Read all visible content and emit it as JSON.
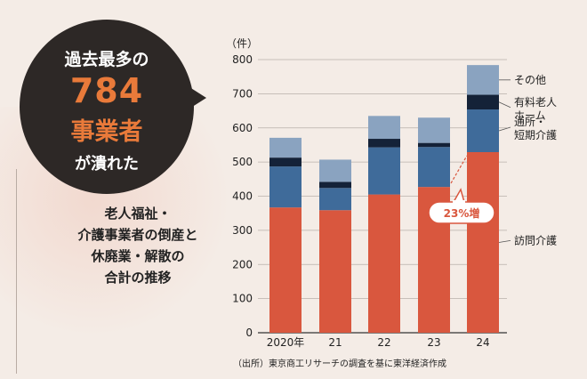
{
  "headline": {
    "line1": "過去最多の",
    "number": "784",
    "line3": "事業者",
    "line4": "が潰れた"
  },
  "description": [
    "老人福祉・",
    "介護事業者の倒産と",
    "休廃業・解散の",
    "合計の推移"
  ],
  "source": "（出所）東京商工リサーチの調査を基に東洋経済作成",
  "colors": {
    "visit_care": "#d9573e",
    "day_short": "#3f6b9a",
    "paid_home": "#142238",
    "other": "#8aa3c0",
    "bubble": "#2d2826",
    "accent": "#e97a3a"
  },
  "chart_data": {
    "type": "bar",
    "stacked": true,
    "unit": "（件）",
    "categories": [
      "2020年",
      "21",
      "22",
      "23",
      "24"
    ],
    "ylim": [
      0,
      800
    ],
    "yticks": [
      0,
      100,
      200,
      300,
      400,
      500,
      600,
      700,
      800
    ],
    "grid": true,
    "legend_position": "right",
    "series": [
      {
        "name": "訪問介護",
        "values": [
          367,
          359,
          405,
          427,
          529
        ]
      },
      {
        "name": "通所・短期介護",
        "values": [
          120,
          65,
          138,
          117,
          125
        ]
      },
      {
        "name": "有料老人ホーム",
        "values": [
          26,
          18,
          25,
          12,
          43
        ]
      },
      {
        "name": "その他",
        "values": [
          58,
          65,
          67,
          74,
          87
        ]
      }
    ],
    "annotation": "23%増"
  }
}
